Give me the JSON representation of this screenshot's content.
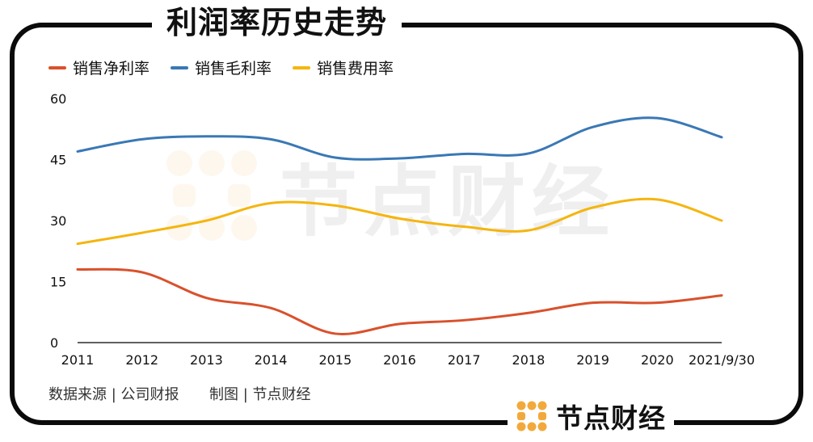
{
  "title": "利润率历史走势",
  "source_text": "数据来源 | 公司财报",
  "credit_text": "制图 | 节点财经",
  "brand": {
    "name": "节点财经",
    "logo_color": "#f2a93b",
    "watermark_text": "节点财经"
  },
  "colors": {
    "net": "#d9512c",
    "gross": "#3a78b5",
    "expense": "#f5b50f",
    "axis": "#000000"
  },
  "chart_data": {
    "type": "line",
    "title": "利润率历史走势",
    "categories": [
      "2011",
      "2012",
      "2013",
      "2014",
      "2015",
      "2016",
      "2017",
      "2018",
      "2019",
      "2020",
      "2021/9/30"
    ],
    "ylim": [
      0,
      60
    ],
    "yticks": [
      0,
      15,
      30,
      45,
      60
    ],
    "grid": false,
    "legend": "top-left",
    "series": [
      {
        "name": "销售净利率",
        "color": "#d9512c",
        "values": [
          18.0,
          17.3,
          11.0,
          8.5,
          2.2,
          4.6,
          5.5,
          7.3,
          9.8,
          9.8,
          11.6
        ]
      },
      {
        "name": "销售毛利率",
        "color": "#3a78b5",
        "values": [
          47.0,
          50.0,
          50.7,
          50.0,
          45.5,
          45.3,
          46.4,
          46.5,
          53.0,
          55.2,
          50.5
        ]
      },
      {
        "name": "销售费用率",
        "color": "#f5b50f",
        "values": [
          24.3,
          27.0,
          30.0,
          34.3,
          33.7,
          30.5,
          28.5,
          27.6,
          33.2,
          35.2,
          30.0
        ]
      }
    ]
  }
}
